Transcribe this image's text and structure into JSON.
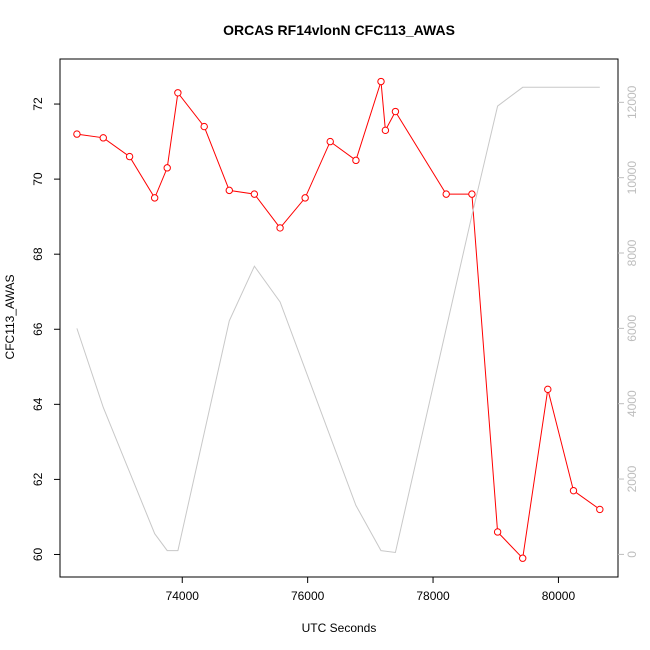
{
  "chart_data": {
    "type": "line",
    "title": "ORCAS RF14vlonN CFC113_AWAS",
    "xlabel": "UTC Seconds",
    "ylabel": "CFC113_AWAS",
    "xlim": [
      72050,
      80950
    ],
    "ylim": [
      59.4,
      73.2
    ],
    "y2lim": [
      -600,
      13150
    ],
    "x_ticks": [
      74000,
      76000,
      78000,
      80000
    ],
    "y_ticks": [
      60,
      62,
      64,
      66,
      68,
      70,
      72
    ],
    "y2_ticks": [
      0,
      2000,
      4000,
      6000,
      8000,
      10000,
      12000
    ],
    "grid": false,
    "series": [
      {
        "color": "#ff0000",
        "axis": "left",
        "markers": true,
        "x": [
          72320,
          72740,
          73160,
          73560,
          73760,
          73930,
          74350,
          74750,
          75150,
          75560,
          75960,
          76360,
          76770,
          77170,
          77240,
          77400,
          78210,
          78620,
          79030,
          79430,
          79830,
          80240,
          80660
        ],
        "values": [
          71.2,
          71.1,
          70.6,
          69.5,
          70.3,
          72.3,
          71.4,
          69.7,
          69.6,
          68.7,
          69.5,
          71.0,
          70.5,
          72.6,
          71.3,
          71.8,
          69.6,
          69.6,
          60.6,
          59.9,
          64.4,
          61.7,
          61.2
        ]
      },
      {
        "color": "#c8c8c8",
        "axis": "right",
        "markers": false,
        "x": [
          72320,
          72740,
          73560,
          73760,
          73930,
          74750,
          75150,
          75560,
          76770,
          77170,
          77400,
          78620,
          79030,
          79430,
          80660
        ],
        "values": [
          6000,
          3900,
          550,
          100,
          100,
          6200,
          7650,
          6700,
          1300,
          100,
          50,
          9000,
          11900,
          12400,
          12400
        ]
      }
    ]
  }
}
